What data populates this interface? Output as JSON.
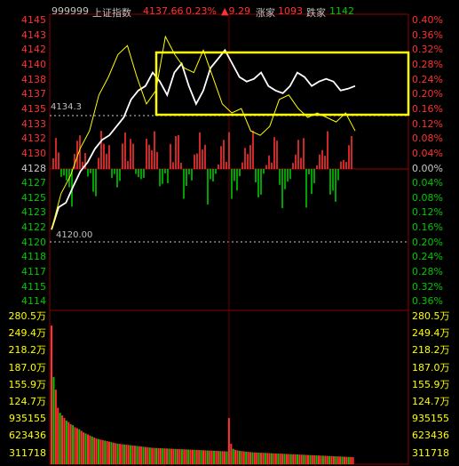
{
  "header": {
    "code": "999999",
    "name": "上证指数",
    "price": "4137.66",
    "pct": "0.23%",
    "change": "▲9.29",
    "up_label": "涨家",
    "up_count": "1093",
    "down_label": "跌家",
    "down_count": "1142"
  },
  "annotations": {
    "high_marker": "4134.3",
    "low_marker": "4120.00"
  },
  "axes": {
    "price_left": [
      "4145",
      "4143",
      "4142",
      "4140",
      "4138",
      "4137",
      "4135",
      "4133",
      "4132",
      "4130",
      "4128",
      "4127",
      "4125",
      "4123",
      "4122",
      "4120",
      "4118",
      "4117",
      "4115",
      "4114"
    ],
    "pct_right": [
      "0.40%",
      "0.36%",
      "0.32%",
      "0.28%",
      "0.24%",
      "0.20%",
      "0.16%",
      "0.12%",
      "0.08%",
      "0.04%",
      "0.00%",
      "0.04%",
      "0.08%",
      "0.12%",
      "0.16%",
      "0.20%",
      "0.24%",
      "0.28%",
      "0.32%",
      "0.36%"
    ],
    "volume_left": [
      "280.5万",
      "249.4万",
      "218.2万",
      "187.0万",
      "155.9万",
      "124.7万",
      "935155",
      "623436",
      "311718"
    ],
    "volume_right": [
      "280.5万",
      "249.4万",
      "218.2万",
      "187.0万",
      "155.9万",
      "124.7万",
      "935155",
      "623436",
      "311718"
    ]
  },
  "colors": {
    "up": "#ff3232",
    "down": "#00c800",
    "price_line": "#ffffff",
    "avg_line": "#ffff00",
    "highlight_box": "#ffff00",
    "header_code": "#c0c0c0"
  },
  "chart_data": {
    "type": "line",
    "series": [
      {
        "values": [
          4122.0,
          4124.5,
          4125.0,
          4126.8,
          4128.5,
          4129.5,
          4131.0,
          4132.0,
          4132.5,
          4133.5,
          4134.5,
          4136.5,
          4137.5,
          4138.0,
          4139.5,
          4138.5,
          4137.0,
          4139.5,
          4140.5,
          4138.0,
          4136.0,
          4137.5,
          4140.0,
          4141.0,
          4142.0,
          4140.5,
          4139.0,
          4138.5,
          4138.8,
          4139.5,
          4138.0,
          4137.5,
          4137.2,
          4138.0,
          4139.5,
          4139.0,
          4138.0,
          4138.5,
          4138.8,
          4138.5,
          4137.5,
          4137.7,
          4138.0
        ]
      },
      {
        "values": [
          4122.0,
          4126.0,
          4128.0,
          4131.0,
          4133.0,
          4137.0,
          4139.0,
          4141.5,
          4142.5,
          4139.0,
          4136.0,
          4137.5,
          4143.5,
          4141.5,
          4140.0,
          4139.5,
          4142.0,
          4139.0,
          4136.0,
          4135.0,
          4135.5,
          4133.0,
          4132.5,
          4133.5,
          4136.5,
          4137.0,
          4135.5,
          4134.5,
          4135.0,
          4134.5,
          4134.0,
          4135.0,
          4133.0
        ]
      }
    ],
    "ylim": [
      4113,
      4146
    ],
    "volume_ylim": [
      0,
      2805000
    ],
    "volume_values": [
      2700000,
      1700000,
      1450000,
      1100000,
      1000000,
      950000,
      900000,
      850000,
      820000,
      780000,
      760000,
      720000,
      700000,
      680000,
      650000,
      620000,
      600000,
      580000,
      560000,
      540000,
      520000,
      500000,
      490000,
      480000,
      470000,
      460000,
      450000,
      440000,
      430000,
      420000,
      410000,
      400000,
      395000,
      390000,
      385000,
      380000,
      375000,
      370000,
      365000,
      360000,
      355000,
      350000,
      345000,
      340000,
      335000,
      330000,
      325000,
      320000,
      318000,
      316000,
      314000,
      312000,
      310000,
      308000,
      306000,
      304000,
      302000,
      300000,
      298000,
      296000,
      294000,
      292000,
      290000,
      288000,
      286000,
      284000,
      282000,
      280000,
      278000,
      276000,
      274000,
      272000,
      270000,
      268000,
      266000,
      264000,
      262000,
      260000,
      258000,
      256000,
      254000,
      252000,
      250000,
      900000,
      400000,
      300000,
      280000,
      270000,
      260000,
      255000,
      250000,
      245000,
      240000,
      236000,
      232000,
      230000,
      228000,
      226000,
      224000,
      222000,
      220000,
      218000,
      216000,
      214000,
      212000,
      210000,
      208000,
      206000,
      204000,
      202000,
      200000,
      198000,
      196000,
      194000,
      192000,
      190000,
      188000,
      186000,
      184000,
      182000,
      180000,
      178000,
      176000,
      174000,
      172000,
      170000,
      168000,
      166000,
      164000,
      162000,
      160000,
      158000,
      156000,
      154000,
      152000,
      150000,
      148000,
      146000,
      144000,
      142000,
      140000,
      138000
    ]
  }
}
